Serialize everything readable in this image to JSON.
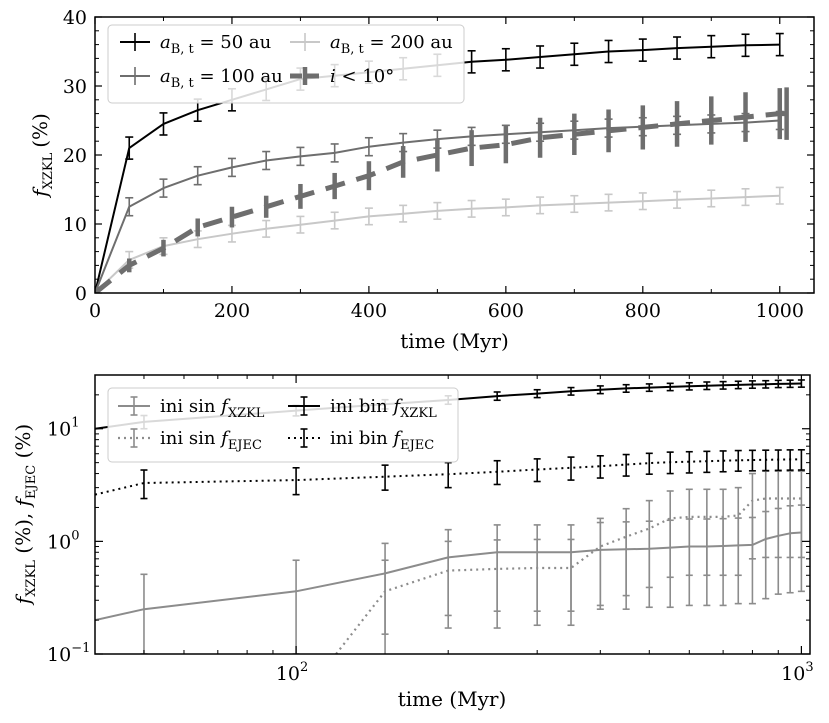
{
  "chart_data": [
    {
      "type": "line",
      "xlabel": "time (Myr)",
      "ylabel_main": "f",
      "ylabel_sub": "XZKL",
      "ylabel_unit": "(%)",
      "xlim": [
        0,
        1050
      ],
      "ylim": [
        0,
        40
      ],
      "xticks": [
        0,
        200,
        400,
        600,
        800,
        1000
      ],
      "yticks": [
        0,
        10,
        20,
        30,
        40
      ],
      "legend_position": "top-left",
      "series": [
        {
          "name": "a_B,t = 50 au",
          "label_main": "a",
          "label_sub": "B, t",
          "label_rest": " = 50 au",
          "color": "#000000",
          "style": "solid",
          "width": 2,
          "x": [
            0,
            50,
            100,
            150,
            200,
            250,
            300,
            350,
            400,
            450,
            500,
            550,
            600,
            650,
            700,
            750,
            800,
            850,
            900,
            950,
            1000
          ],
          "y": [
            0,
            21.0,
            24.5,
            26.5,
            28.0,
            29.5,
            31.0,
            31.5,
            32.0,
            32.5,
            33.0,
            33.5,
            33.8,
            34.2,
            34.6,
            35.0,
            35.2,
            35.5,
            35.7,
            35.9,
            36.0
          ],
          "err": [
            0,
            1.6,
            1.6,
            1.6,
            1.6,
            1.6,
            1.6,
            1.6,
            1.6,
            1.6,
            1.6,
            1.6,
            1.6,
            1.6,
            1.6,
            1.6,
            1.6,
            1.6,
            1.6,
            1.6,
            1.6
          ]
        },
        {
          "name": "a_B,t = 100 au",
          "label_main": "a",
          "label_sub": "B, t",
          "label_rest": " = 100 au",
          "color": "#6e6e6e",
          "style": "solid",
          "width": 2,
          "x": [
            0,
            50,
            100,
            150,
            200,
            250,
            300,
            350,
            400,
            450,
            500,
            550,
            600,
            650,
            700,
            750,
            800,
            850,
            900,
            950,
            1000
          ],
          "y": [
            0,
            12.5,
            15.2,
            17.0,
            18.2,
            19.2,
            19.8,
            20.3,
            21.2,
            21.8,
            22.3,
            22.7,
            23.0,
            23.3,
            23.6,
            23.9,
            24.1,
            24.3,
            24.5,
            24.7,
            25.0
          ],
          "err": [
            0,
            1.3,
            1.3,
            1.3,
            1.3,
            1.3,
            1.3,
            1.3,
            1.3,
            1.3,
            1.3,
            1.3,
            1.3,
            1.3,
            1.3,
            1.3,
            1.3,
            1.3,
            1.3,
            1.3,
            1.3
          ]
        },
        {
          "name": "a_B,t = 200 au",
          "label_main": "a",
          "label_sub": "B, t",
          "label_rest": " = 200 au",
          "color": "#c8c8c8",
          "style": "solid",
          "width": 2,
          "x": [
            0,
            50,
            100,
            150,
            200,
            250,
            300,
            350,
            400,
            450,
            500,
            550,
            600,
            650,
            700,
            750,
            800,
            850,
            900,
            950,
            1000
          ],
          "y": [
            0,
            4.8,
            6.8,
            7.8,
            8.6,
            9.3,
            9.9,
            10.5,
            11.1,
            11.5,
            11.9,
            12.2,
            12.4,
            12.7,
            12.9,
            13.1,
            13.3,
            13.5,
            13.7,
            13.9,
            14.1
          ],
          "err": [
            0,
            1.2,
            1.2,
            1.2,
            1.2,
            1.2,
            1.2,
            1.2,
            1.2,
            1.2,
            1.2,
            1.2,
            1.2,
            1.2,
            1.2,
            1.2,
            1.2,
            1.2,
            1.2,
            1.2,
            1.2
          ]
        },
        {
          "name": "i < 10°",
          "label_main": "i",
          "label_sub": "",
          "label_rest": " < 10°",
          "color": "#6e6e6e",
          "style": "dashed",
          "width": 5,
          "x": [
            0,
            50,
            100,
            150,
            200,
            250,
            300,
            350,
            400,
            450,
            500,
            550,
            600,
            650,
            700,
            750,
            800,
            850,
            900,
            950,
            1000,
            1010
          ],
          "y": [
            0,
            4.0,
            6.5,
            9.5,
            11.0,
            12.5,
            14.0,
            15.5,
            17.0,
            19.0,
            20.0,
            21.0,
            21.5,
            22.5,
            23.0,
            23.5,
            24.0,
            24.5,
            25.0,
            25.5,
            26.0,
            26.0
          ],
          "err": [
            0,
            1.0,
            1.2,
            1.3,
            1.5,
            1.6,
            1.8,
            1.9,
            2.1,
            2.3,
            2.4,
            2.6,
            2.7,
            2.9,
            3.0,
            3.1,
            3.2,
            3.3,
            3.5,
            3.6,
            3.7,
            3.8
          ]
        }
      ]
    },
    {
      "type": "line",
      "xscale": "log",
      "yscale": "log",
      "xlabel": "time (Myr)",
      "ylabel": "f_XZKL (%), f_EJEC (%)",
      "xlim": [
        40,
        1040
      ],
      "ylim": [
        0.1,
        30
      ],
      "xticks": [
        100,
        1000
      ],
      "yticks": [
        0.1,
        1,
        10
      ],
      "xtick_labels": [
        {
          "base": "10",
          "exp": "2"
        },
        {
          "base": "10",
          "exp": "3"
        }
      ],
      "ytick_labels": [
        {
          "base": "10",
          "exp": "−1"
        },
        {
          "base": "10",
          "exp": "0"
        },
        {
          "base": "10",
          "exp": "1"
        }
      ],
      "legend_position": "top-left",
      "series": [
        {
          "name": "ini sin f_XZKL",
          "label_pre": "ini sin ",
          "label_main": "f",
          "label_sub": "XZKL",
          "color": "#8c8c8c",
          "style": "solid",
          "width": 2,
          "x": [
            40,
            50,
            100,
            150,
            200,
            250,
            300,
            350,
            400,
            450,
            500,
            550,
            600,
            650,
            700,
            750,
            800,
            850,
            900,
            950,
            1000
          ],
          "y": [
            0.2,
            0.25,
            0.36,
            0.52,
            0.72,
            0.8,
            0.8,
            0.8,
            0.84,
            0.85,
            0.86,
            0.88,
            0.9,
            0.9,
            0.91,
            0.92,
            0.93,
            1.05,
            1.12,
            1.18,
            1.2
          ],
          "err_lo": [
            0,
            0.15,
            0.26,
            0.37,
            0.5,
            0.56,
            0.56,
            0.56,
            0.59,
            0.6,
            0.6,
            0.62,
            0.63,
            0.63,
            0.64,
            0.64,
            0.65,
            0.74,
            0.78,
            0.83,
            0.84
          ],
          "err_hi": [
            0,
            0.26,
            0.32,
            0.44,
            0.55,
            0.6,
            0.6,
            0.6,
            0.63,
            0.64,
            0.65,
            0.66,
            0.68,
            0.68,
            0.68,
            0.69,
            0.7,
            0.79,
            0.84,
            0.89,
            0.9
          ]
        },
        {
          "name": "ini sin f_EJEC",
          "label_pre": "ini sin ",
          "label_main": "f",
          "label_sub": "EJEC",
          "color": "#8c8c8c",
          "style": "dotted",
          "width": 2.2,
          "x": [
            120,
            150,
            200,
            250,
            300,
            350,
            400,
            450,
            500,
            550,
            600,
            650,
            700,
            750,
            800,
            850,
            900,
            950,
            1000
          ],
          "y": [
            0.1,
            0.36,
            0.55,
            0.57,
            0.58,
            0.58,
            0.9,
            1.1,
            1.3,
            1.6,
            1.65,
            1.65,
            1.65,
            1.7,
            2.3,
            2.4,
            2.4,
            2.4,
            2.4
          ],
          "err_lo": [
            0,
            0.28,
            0.38,
            0.4,
            0.4,
            0.4,
            0.63,
            0.77,
            0.91,
            1.12,
            1.15,
            1.15,
            1.15,
            1.2,
            1.6,
            1.68,
            1.68,
            1.68,
            1.68
          ],
          "err_hi": [
            0,
            0.32,
            0.45,
            0.46,
            0.46,
            0.46,
            0.7,
            0.85,
            1.0,
            1.2,
            1.25,
            1.25,
            1.25,
            1.3,
            1.7,
            1.8,
            1.8,
            1.8,
            1.8
          ]
        },
        {
          "name": "ini bin f_XZKL",
          "label_pre": "ini bin ",
          "label_main": "f",
          "label_sub": "XZKL",
          "color": "#000000",
          "style": "solid",
          "width": 2,
          "x": [
            40,
            50,
            100,
            150,
            200,
            250,
            300,
            350,
            400,
            450,
            500,
            550,
            600,
            650,
            700,
            750,
            800,
            850,
            900,
            950,
            1000
          ],
          "y": [
            10.0,
            11.5,
            14.5,
            16.5,
            18.0,
            19.5,
            20.5,
            21.5,
            22.2,
            22.8,
            23.2,
            23.5,
            23.8,
            24.1,
            24.3,
            24.5,
            24.7,
            24.8,
            25.0,
            25.1,
            25.2
          ],
          "err_lo": [
            0,
            1.5,
            1.5,
            1.5,
            1.5,
            1.6,
            1.6,
            1.6,
            1.7,
            1.7,
            1.7,
            1.7,
            1.7,
            1.8,
            1.8,
            1.8,
            1.8,
            1.8,
            1.8,
            1.8,
            1.8
          ],
          "err_hi": [
            0,
            1.6,
            1.6,
            1.6,
            1.6,
            1.7,
            1.7,
            1.7,
            1.8,
            1.8,
            1.8,
            1.8,
            1.8,
            1.9,
            1.9,
            1.9,
            1.9,
            1.9,
            1.9,
            1.9,
            1.9
          ]
        },
        {
          "name": "ini bin f_EJEC",
          "label_pre": "ini bin ",
          "label_main": "f",
          "label_sub": "EJEC",
          "color": "#000000",
          "style": "dotted",
          "width": 2,
          "x": [
            40,
            50,
            100,
            150,
            200,
            250,
            300,
            350,
            400,
            450,
            500,
            550,
            600,
            650,
            700,
            750,
            800,
            850,
            900,
            950,
            1000
          ],
          "y": [
            2.6,
            3.3,
            3.5,
            3.75,
            3.95,
            4.15,
            4.35,
            4.5,
            4.65,
            4.8,
            4.95,
            5.05,
            5.1,
            5.15,
            5.2,
            5.25,
            5.28,
            5.3,
            5.32,
            5.34,
            5.35
          ],
          "err_lo": [
            0,
            0.9,
            0.9,
            0.9,
            0.95,
            0.95,
            0.95,
            1.0,
            1.0,
            1.0,
            1.0,
            1.05,
            1.05,
            1.05,
            1.05,
            1.05,
            1.05,
            1.05,
            1.05,
            1.05,
            1.05
          ],
          "err_hi": [
            0,
            1.0,
            1.0,
            1.0,
            1.05,
            1.05,
            1.05,
            1.1,
            1.1,
            1.1,
            1.1,
            1.15,
            1.15,
            1.15,
            1.15,
            1.15,
            1.15,
            1.15,
            1.15,
            1.15,
            1.15
          ]
        }
      ]
    }
  ]
}
